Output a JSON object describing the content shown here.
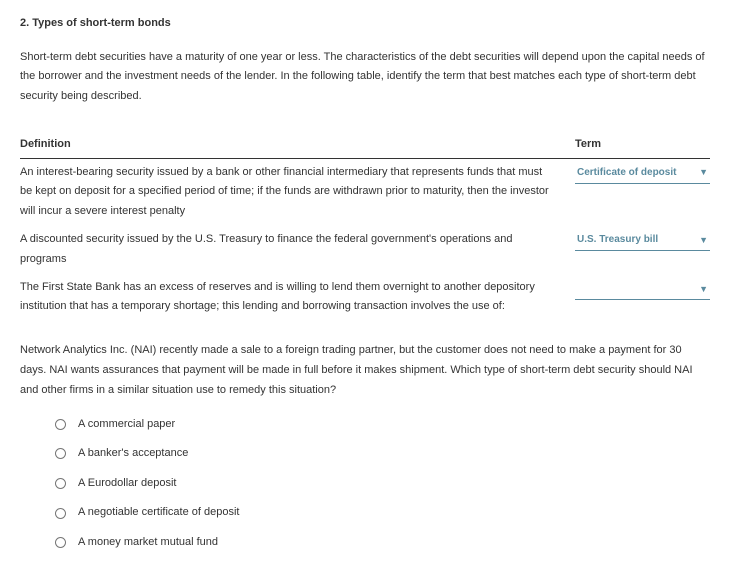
{
  "header": {
    "title": "2. Types of short-term bonds"
  },
  "intro": "Short-term debt securities have a maturity of one year or less. The characteristics of the debt securities will depend upon the capital needs of the borrower and the investment needs of the lender. In the following table, identify the term that best matches each type of short-term debt security being described.",
  "table": {
    "headers": {
      "definition": "Definition",
      "term": "Term"
    },
    "rows": [
      {
        "definition": "An interest-bearing security issued by a bank or other financial intermediary that represents funds that must be kept on deposit for a specified period of time; if the funds are withdrawn prior to maturity, then the investor will incur a severe interest penalty",
        "term": "Certificate of deposit"
      },
      {
        "definition": "A discounted security issued by the U.S. Treasury to finance the federal government's operations and programs",
        "term": "U.S. Treasury bill"
      },
      {
        "definition": "The First State Bank has an excess of reserves and is willing to lend them overnight to another depository institution that has a temporary shortage; this lending and borrowing transaction involves the use of:",
        "term": ""
      }
    ]
  },
  "scenario": "Network Analytics Inc. (NAI) recently made a sale to a foreign trading partner, but the customer does not need to make a payment for 30 days. NAI wants assurances that payment will be made in full before it makes shipment. Which type of short-term debt security should NAI and other firms in a similar situation use to remedy this situation?",
  "options": [
    "A commercial paper",
    "A banker's acceptance",
    "A Eurodollar deposit",
    "A negotiable certificate of deposit",
    "A money market mutual fund"
  ],
  "colors": {
    "dropdown": "#5a8a9e",
    "text": "#333333"
  }
}
